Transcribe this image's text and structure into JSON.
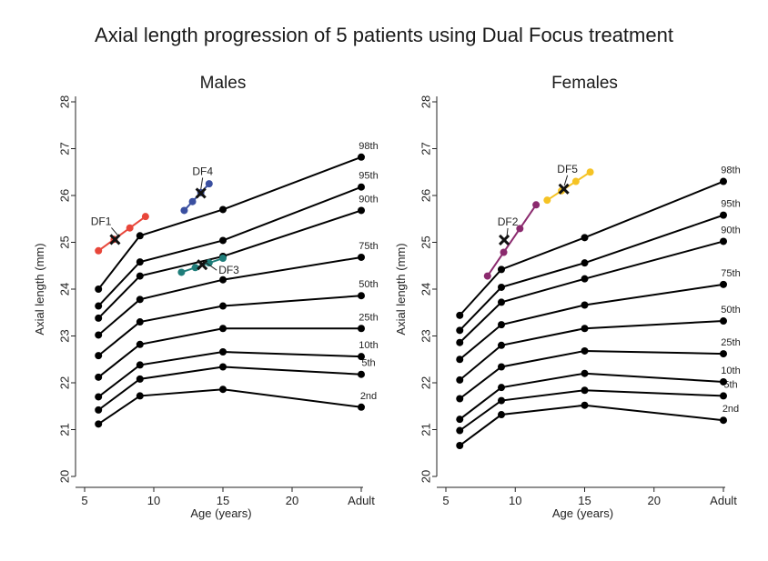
{
  "figure": {
    "title": "Axial length progression of 5 patients using Dual Focus treatment"
  },
  "chart_data": [
    {
      "type": "line",
      "title": "Males",
      "xlabel": "Age (years)",
      "ylabel": "Axial length (mm)",
      "x_ticks": [
        "5",
        "10",
        "15",
        "20",
        "Adult"
      ],
      "x_tick_values": [
        5,
        10,
        15,
        20,
        25
      ],
      "y_ticks": [
        "20",
        "21",
        "22",
        "23",
        "24",
        "25",
        "26",
        "27",
        "28"
      ],
      "ylim": [
        20,
        28
      ],
      "xlim": [
        5,
        25
      ],
      "grid": false,
      "percentile_color": "#000000",
      "percentiles": [
        {
          "label": "2nd",
          "x": [
            6,
            9,
            15,
            25
          ],
          "y": [
            21.12,
            21.72,
            21.86,
            21.48
          ]
        },
        {
          "label": "5th",
          "x": [
            6,
            9,
            15,
            25
          ],
          "y": [
            21.42,
            22.08,
            22.34,
            22.18
          ]
        },
        {
          "label": "10th",
          "x": [
            6,
            9,
            15,
            25
          ],
          "y": [
            21.7,
            22.38,
            22.66,
            22.56
          ]
        },
        {
          "label": "25th",
          "x": [
            6,
            9,
            15,
            25
          ],
          "y": [
            22.12,
            22.82,
            23.16,
            23.16
          ]
        },
        {
          "label": "50th",
          "x": [
            6,
            9,
            15,
            25
          ],
          "y": [
            22.58,
            23.3,
            23.64,
            23.86
          ]
        },
        {
          "label": "75th",
          "x": [
            6,
            9,
            15,
            25
          ],
          "y": [
            23.02,
            23.78,
            24.2,
            24.68
          ]
        },
        {
          "label": "90th",
          "x": [
            6,
            9,
            15,
            25
          ],
          "y": [
            23.38,
            24.28,
            24.7,
            25.68
          ]
        },
        {
          "label": "95th",
          "x": [
            6,
            9,
            15,
            25
          ],
          "y": [
            23.64,
            24.58,
            25.04,
            26.18
          ]
        },
        {
          "label": "98th",
          "x": [
            6,
            9,
            15,
            25
          ],
          "y": [
            24.0,
            25.14,
            25.7,
            26.82
          ]
        }
      ],
      "patients": [
        {
          "label": "DF1",
          "color": "#e8463a",
          "x": [
            6.0,
            9.4
          ],
          "y": [
            24.82,
            25.55
          ],
          "cross": [
            7.2,
            25.06
          ]
        },
        {
          "label": "DF4",
          "color": "#3a4fa0",
          "x": [
            12.2,
            14.0
          ],
          "y": [
            25.68,
            26.25
          ],
          "cross": [
            13.4,
            26.05
          ]
        },
        {
          "label": "DF3",
          "color": "#1f7d7a",
          "x": [
            12.0,
            15.0
          ],
          "y": [
            24.36,
            24.66
          ],
          "cross": [
            13.5,
            24.52
          ]
        }
      ]
    },
    {
      "type": "line",
      "title": "Females",
      "xlabel": "Age (years)",
      "ylabel": "Axial length (mm)",
      "x_ticks": [
        "5",
        "10",
        "15",
        "20",
        "Adult"
      ],
      "x_tick_values": [
        5,
        10,
        15,
        20,
        25
      ],
      "y_ticks": [
        "20",
        "21",
        "22",
        "23",
        "24",
        "25",
        "26",
        "27",
        "28"
      ],
      "ylim": [
        20,
        28
      ],
      "xlim": [
        5,
        25
      ],
      "grid": false,
      "percentile_color": "#000000",
      "percentiles": [
        {
          "label": "2nd",
          "x": [
            6,
            9,
            15,
            25
          ],
          "y": [
            20.66,
            21.32,
            21.52,
            21.2
          ]
        },
        {
          "label": "5th",
          "x": [
            6,
            9,
            15,
            25
          ],
          "y": [
            20.98,
            21.62,
            21.84,
            21.72
          ]
        },
        {
          "label": "10th",
          "x": [
            6,
            9,
            15,
            25
          ],
          "y": [
            21.22,
            21.9,
            22.2,
            22.02
          ]
        },
        {
          "label": "25th",
          "x": [
            6,
            9,
            15,
            25
          ],
          "y": [
            21.66,
            22.34,
            22.68,
            22.62
          ]
        },
        {
          "label": "50th",
          "x": [
            6,
            9,
            15,
            25
          ],
          "y": [
            22.06,
            22.8,
            23.16,
            23.32
          ]
        },
        {
          "label": "75th",
          "x": [
            6,
            9,
            15,
            25
          ],
          "y": [
            22.5,
            23.24,
            23.66,
            24.1
          ]
        },
        {
          "label": "90th",
          "x": [
            6,
            9,
            15,
            25
          ],
          "y": [
            22.86,
            23.72,
            24.22,
            25.02
          ]
        },
        {
          "label": "95th",
          "x": [
            6,
            9,
            15,
            25
          ],
          "y": [
            23.12,
            24.04,
            24.56,
            25.58
          ]
        },
        {
          "label": "98th",
          "x": [
            6,
            9,
            15,
            25
          ],
          "y": [
            23.44,
            24.42,
            25.1,
            26.3
          ]
        }
      ],
      "patients": [
        {
          "label": "DF2",
          "color": "#8b2a6e",
          "x": [
            8.0,
            11.5
          ],
          "y": [
            24.28,
            25.8
          ],
          "cross": [
            9.2,
            25.05
          ]
        },
        {
          "label": "DF5",
          "color": "#f5c324",
          "x": [
            12.3,
            15.4
          ],
          "y": [
            25.9,
            26.5
          ],
          "cross": [
            13.5,
            26.14
          ]
        }
      ]
    }
  ]
}
